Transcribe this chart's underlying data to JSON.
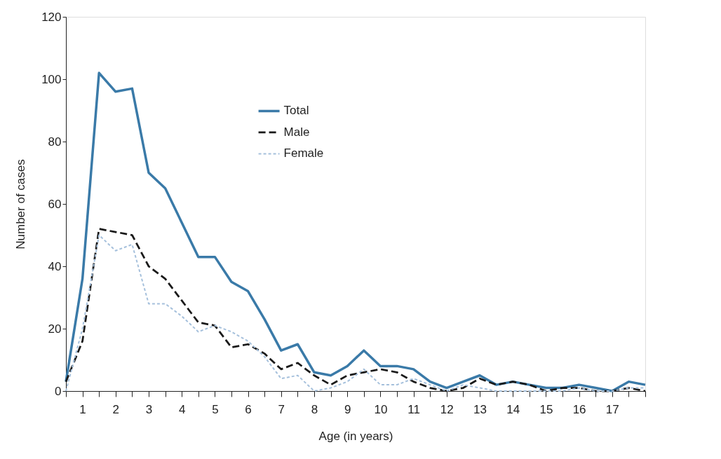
{
  "chart_data": {
    "type": "line",
    "xlabel": "Age (in years)",
    "ylabel": "Number of cases",
    "x": [
      0.5,
      1,
      1.5,
      2,
      2.5,
      3,
      3.5,
      4,
      4.5,
      5,
      5.5,
      6,
      6.5,
      7,
      7.5,
      8,
      8.5,
      9,
      9.5,
      10,
      10.5,
      11,
      11.5,
      12,
      12.5,
      13,
      13.5,
      14,
      14.5,
      15,
      15.5,
      16,
      16.5,
      17,
      17.5,
      18
    ],
    "series": [
      {
        "name": "Total",
        "color": "#3a7aa8",
        "line_style": "solid",
        "values": [
          3,
          36,
          102,
          96,
          97,
          70,
          65,
          54,
          43,
          43,
          35,
          32,
          23,
          13,
          15,
          6,
          5,
          8,
          13,
          8,
          8,
          7,
          3,
          1,
          3,
          5,
          2,
          3,
          2,
          1,
          1,
          2,
          1,
          0,
          3,
          2
        ]
      },
      {
        "name": "Male",
        "color": "#1a1a1a",
        "line_style": "dashed",
        "values": [
          3,
          16,
          52,
          51,
          50,
          40,
          36,
          29,
          22,
          21,
          14,
          15,
          12,
          7,
          9,
          5,
          2,
          5,
          6,
          7,
          6,
          3,
          1,
          0,
          1,
          4,
          2,
          3,
          2,
          0,
          1,
          1,
          0,
          0,
          1,
          0
        ]
      },
      {
        "name": "Female",
        "color": "#a5c0dc",
        "line_style": "dotted",
        "values": [
          0,
          20,
          50,
          45,
          47,
          28,
          28,
          24,
          19,
          21,
          19,
          16,
          11,
          4,
          5,
          0,
          1,
          3,
          7,
          2,
          2,
          4,
          2,
          0,
          2,
          1,
          0,
          0,
          0,
          0,
          0,
          1,
          0,
          0,
          1,
          1
        ]
      }
    ],
    "xlim": [
      0.5,
      18
    ],
    "xticks": [
      {
        "value": 0.5,
        "label": null
      },
      1,
      {
        "value": 1.5,
        "label": null
      },
      2,
      {
        "value": 2.5,
        "label": null
      },
      3,
      {
        "value": 3.5,
        "label": null
      },
      4,
      {
        "value": 4.5,
        "label": null
      },
      5,
      {
        "value": 5.5,
        "label": null
      },
      6,
      {
        "value": 6.5,
        "label": null
      },
      7,
      {
        "value": 7.5,
        "label": null
      },
      8,
      {
        "value": 8.5,
        "label": null
      },
      9,
      {
        "value": 9.5,
        "label": null
      },
      10,
      {
        "value": 10.5,
        "label": null
      },
      11,
      {
        "value": 11.5,
        "label": null
      },
      12,
      {
        "value": 12.5,
        "label": null
      },
      13,
      {
        "value": 13.5,
        "label": null
      },
      14,
      {
        "value": 14.5,
        "label": null
      },
      15,
      {
        "value": 15.5,
        "label": null
      },
      16,
      {
        "value": 16.5,
        "label": null
      },
      17,
      {
        "value": 17.5,
        "label": null
      },
      {
        "value": 18,
        "label": null
      }
    ],
    "ylim": [
      0,
      120
    ],
    "yticks": [
      0,
      20,
      40,
      60,
      80,
      100,
      120
    ],
    "grid": false,
    "legend": "top",
    "marker": "none"
  }
}
